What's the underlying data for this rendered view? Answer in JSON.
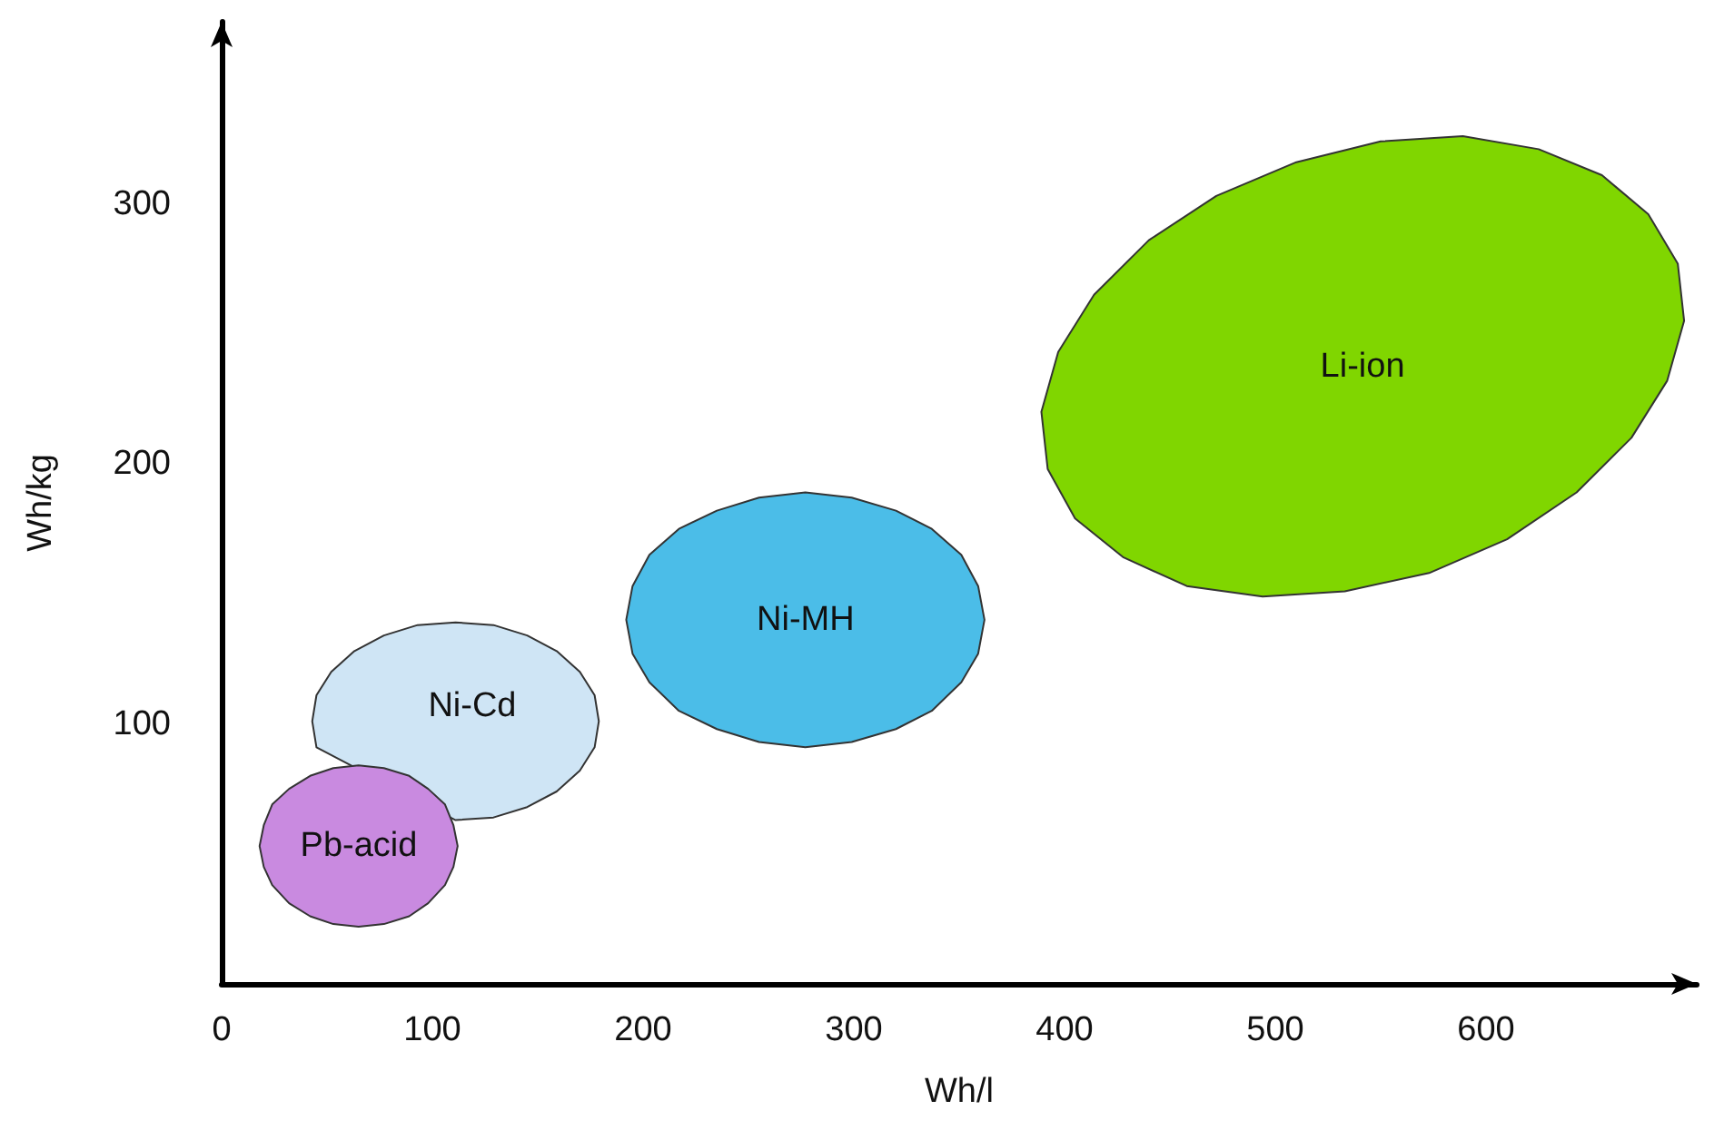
{
  "chart_data": {
    "type": "area",
    "xlabel": "Wh/l",
    "ylabel": "Wh/kg",
    "xlim": [
      0,
      700
    ],
    "ylim": [
      0,
      370
    ],
    "xticks": [
      0,
      100,
      200,
      300,
      400,
      500,
      600
    ],
    "yticks": [
      100,
      200,
      300
    ],
    "grid": false,
    "legend": false,
    "series": [
      {
        "name": "Ni-Cd",
        "color": "#cfe5f5",
        "x": [
          179,
          177,
          170,
          159,
          145,
          129,
          111,
          93,
          77,
          63,
          52,
          45,
          43,
          45,
          111,
          129,
          145,
          159,
          170,
          177
        ],
        "values": [
          101,
          111,
          120,
          128,
          134,
          138,
          139,
          138,
          134,
          128,
          120,
          111,
          101,
          91,
          63,
          64,
          68,
          74,
          82,
          91
        ]
      },
      {
        "name": "Pb-acid",
        "color": "#c98ae0",
        "x": [
          112,
          110,
          106,
          98,
          89,
          77,
          65,
          53,
          42,
          32,
          24,
          20,
          18,
          20,
          24,
          32,
          42,
          53,
          65,
          77,
          89,
          98,
          106,
          110
        ],
        "values": [
          53,
          61,
          69,
          75,
          80,
          83,
          84,
          83,
          80,
          75,
          69,
          61,
          53,
          45,
          38,
          31,
          26,
          23,
          22,
          23,
          26,
          31,
          38,
          45
        ]
      },
      {
        "name": "Ni-MH",
        "color": "#4bbde8",
        "x": [
          362,
          359,
          351,
          337,
          320,
          299,
          277,
          255,
          235,
          217,
          203,
          195,
          192,
          195,
          203,
          217,
          235,
          255,
          277,
          299,
          320,
          337,
          351,
          359
        ],
        "values": [
          140,
          153,
          165,
          175,
          182,
          187,
          189,
          187,
          182,
          175,
          165,
          153,
          140,
          127,
          116,
          105,
          98,
          93,
          91,
          93,
          98,
          105,
          116,
          127
        ]
      },
      {
        "name": "Li-ion",
        "color": "#80d600",
        "x": [
          691,
          694,
          686,
          669,
          643,
          610,
          573,
          533,
          494,
          458,
          428,
          405,
          392,
          389,
          397,
          414,
          440,
          472,
          510,
          550,
          589,
          625,
          655,
          677
        ],
        "values": [
          277,
          255,
          232,
          210,
          189,
          171,
          158,
          151,
          149,
          153,
          164,
          179,
          198,
          220,
          243,
          265,
          286,
          303,
          316,
          324,
          326,
          321,
          311,
          296
        ]
      }
    ]
  }
}
